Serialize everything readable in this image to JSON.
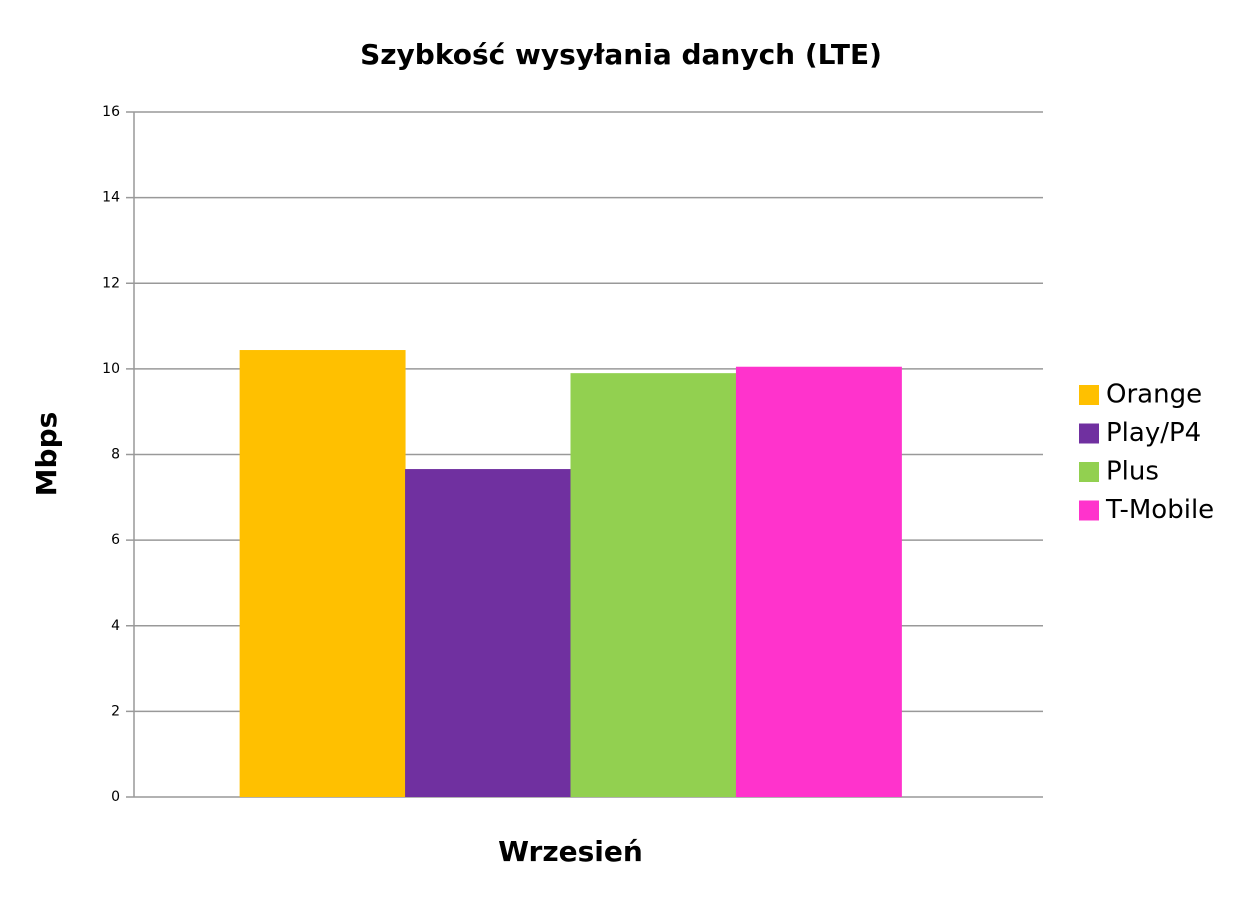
{
  "chart_data": {
    "type": "bar",
    "title": "Szybkość wysyłania danych (LTE)",
    "y_label": "Mbps",
    "categories": [
      "Wrzesień"
    ],
    "series": [
      {
        "name": "Orange",
        "color": "#ffc000",
        "values": [
          10.44
        ]
      },
      {
        "name": "Play/P4",
        "color": "#7030a0",
        "values": [
          7.66
        ]
      },
      {
        "name": "Plus",
        "color": "#92d050",
        "values": [
          9.9
        ]
      },
      {
        "name": "T-Mobile",
        "color": "#ff33cc",
        "values": [
          10.05
        ]
      }
    ],
    "ylim": [
      0,
      16
    ],
    "yticks": [
      0,
      2,
      4,
      6,
      8,
      10,
      12,
      14,
      16
    ],
    "grid": true,
    "legend": "right"
  }
}
